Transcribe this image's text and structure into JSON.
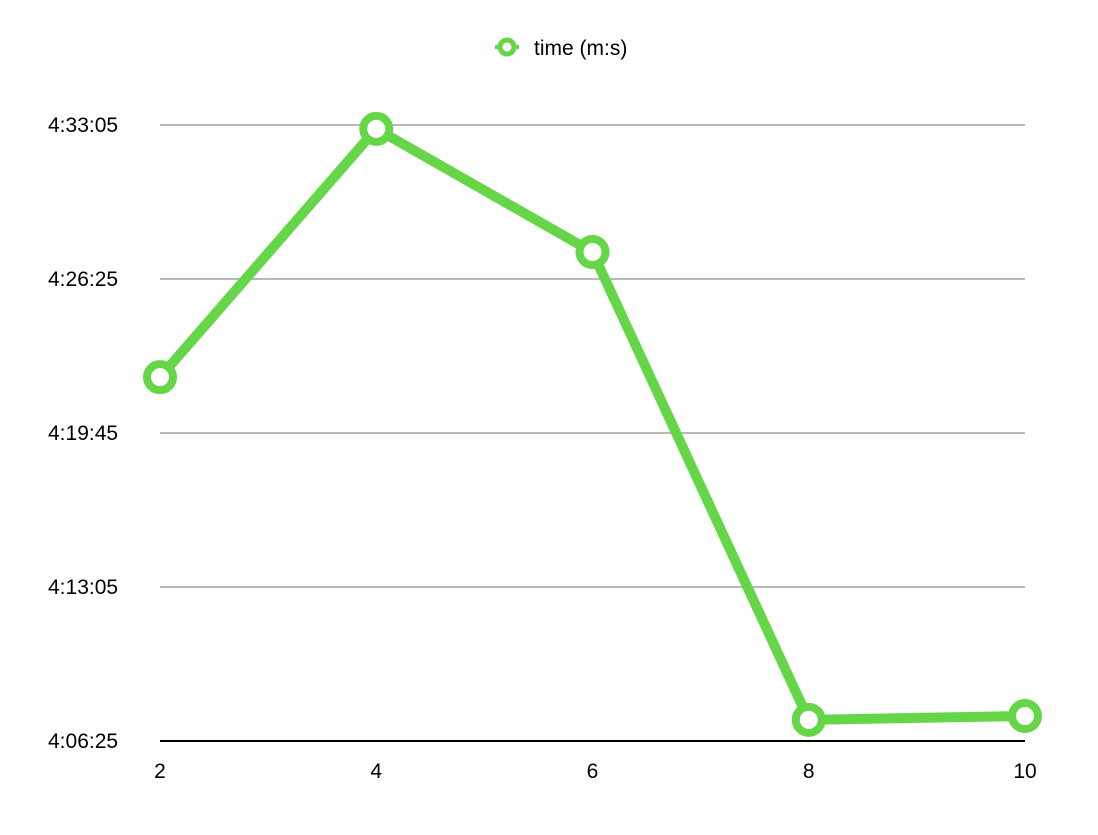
{
  "chart_data": {
    "type": "line",
    "title": "",
    "xlabel": "",
    "ylabel": "",
    "x": [
      2,
      4,
      6,
      8,
      10
    ],
    "series": [
      {
        "name": "time (m:s)",
        "values": [
          "4:22:10",
          "4:32:55",
          "4:27:35",
          "4:07:20",
          "4:07:30"
        ],
        "color": "#66d649"
      }
    ],
    "yticks": [
      "4:06:25",
      "4:13:05",
      "4:19:45",
      "4:26:25",
      "4:33:05"
    ],
    "xticks": [
      "2",
      "4",
      "6",
      "8",
      "10"
    ],
    "ylim": [
      "4:06:25",
      "4:33:05"
    ],
    "xlim": [
      2,
      10
    ],
    "grid": true,
    "legend_position": "top-center"
  }
}
